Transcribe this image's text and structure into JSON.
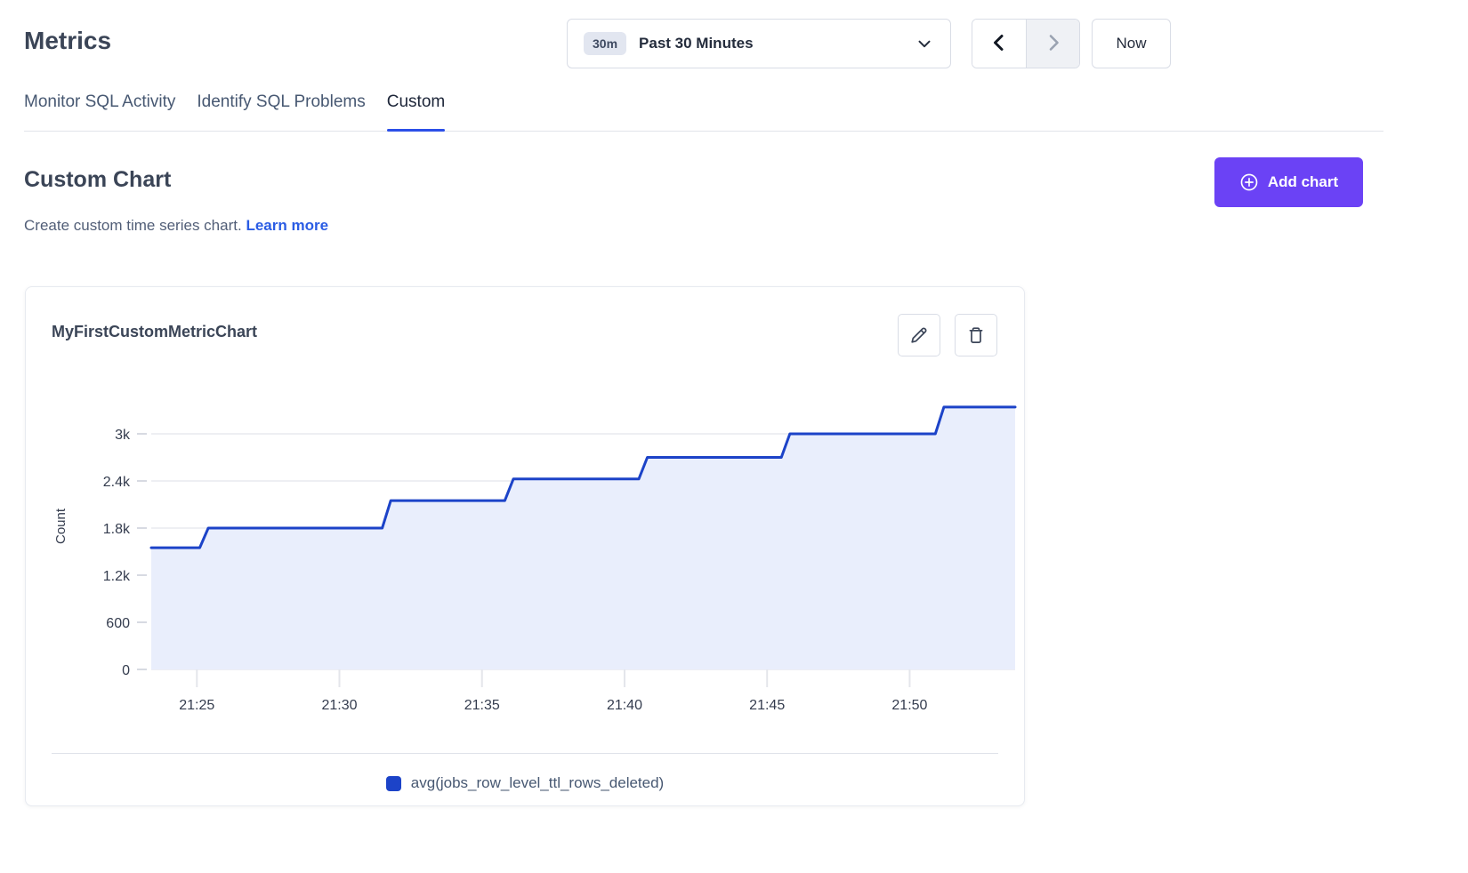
{
  "header": {
    "title": "Metrics"
  },
  "toolbar": {
    "time_range": {
      "badge": "30m",
      "label": "Past 30 Minutes"
    },
    "now_label": "Now",
    "icons": {
      "dropdown": "chevron-down",
      "back": "chevron-left",
      "forward": "chevron-right-disabled"
    }
  },
  "tabs": [
    {
      "label": "Monitor SQL Activity",
      "active": false
    },
    {
      "label": "Identify SQL Problems",
      "active": false
    },
    {
      "label": "Custom",
      "active": true
    }
  ],
  "custom_chart": {
    "heading": "Custom Chart",
    "subtitle": "Create custom time series chart.",
    "learn_more_label": "Learn more",
    "add_button_label": "Add chart",
    "add_button_icon": "plus-circle"
  },
  "chart_card": {
    "title": "MyFirstCustomMetricChart",
    "edit_icon": "pencil",
    "delete_icon": "trash"
  },
  "chart_data": {
    "type": "area",
    "step": true,
    "title": "MyFirstCustomMetricChart",
    "ylabel": "Count",
    "x_unit": "minutes after 21:00",
    "x_range": [
      23.4,
      53.7
    ],
    "ylim": [
      0,
      3645
    ],
    "grid": "horizontal-only",
    "legend_position": "bottom-center",
    "x_ticks": [
      {
        "t": 25,
        "label": "21:25"
      },
      {
        "t": 30,
        "label": "21:30"
      },
      {
        "t": 35,
        "label": "21:35"
      },
      {
        "t": 40,
        "label": "21:40"
      },
      {
        "t": 45,
        "label": "21:45"
      },
      {
        "t": 50,
        "label": "21:50"
      }
    ],
    "y_ticks": [
      {
        "v": 0,
        "label": "0"
      },
      {
        "v": 600,
        "label": "600"
      },
      {
        "v": 1200,
        "label": "1.2k"
      },
      {
        "v": 1800,
        "label": "1.8k"
      },
      {
        "v": 2400,
        "label": "2.4k"
      },
      {
        "v": 3000,
        "label": "3k"
      }
    ],
    "series": [
      {
        "name": "avg(jobs_row_level_ttl_rows_deleted)",
        "color": "#1c43c8",
        "fill": "#e9eefc",
        "points": [
          [
            23.4,
            1550
          ],
          [
            25.1,
            1550
          ],
          [
            25.4,
            1800
          ],
          [
            31.5,
            1800
          ],
          [
            31.8,
            2150
          ],
          [
            35.8,
            2150
          ],
          [
            36.1,
            2425
          ],
          [
            40.5,
            2425
          ],
          [
            40.8,
            2700
          ],
          [
            45.5,
            2700
          ],
          [
            45.8,
            3000
          ],
          [
            50.9,
            3000
          ],
          [
            51.2,
            3340
          ],
          [
            53.7,
            3340
          ]
        ]
      }
    ],
    "legend": [
      {
        "label": "avg(jobs_row_level_ttl_rows_deleted)",
        "color": "#1c43c8"
      }
    ]
  },
  "colors": {
    "accent_purple": "#6b42f5",
    "link_blue": "#2a5ce4",
    "tab_underline": "#2b4fe8",
    "series_blue": "#1c43c8",
    "series_fill": "#e9eefc"
  }
}
